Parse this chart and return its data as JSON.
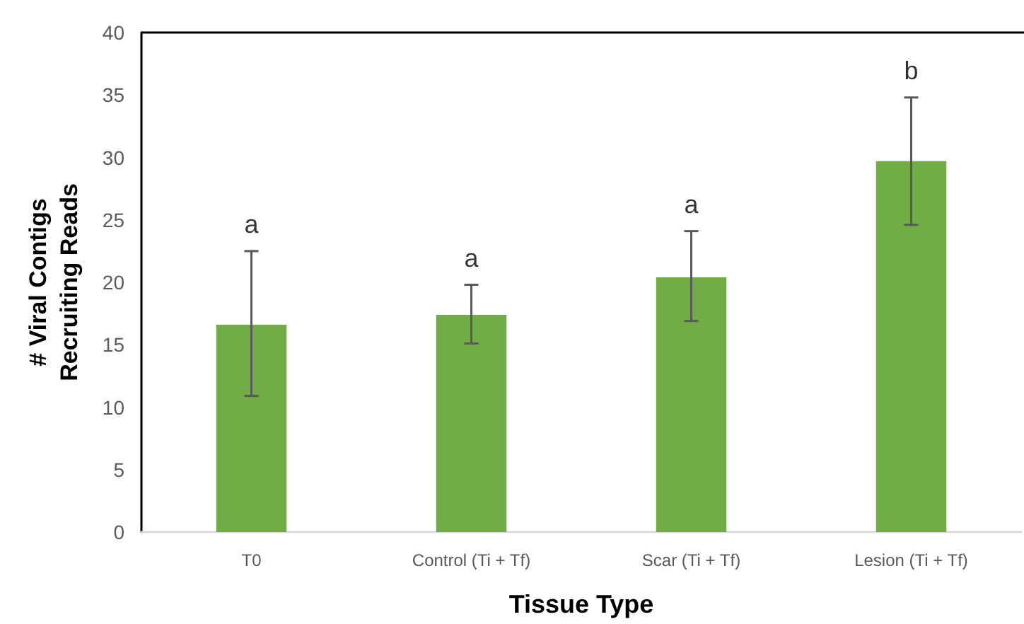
{
  "chart_data": {
    "type": "bar",
    "xlabel": "Tissue Type",
    "ylabel": "# Viral Contigs\nRecruiting Reads",
    "categories": [
      "T0",
      "Control (Ti + Tf)",
      "Scar (Ti + Tf)",
      "Lesion (Ti + Tf)"
    ],
    "values": [
      16.6,
      17.4,
      20.4,
      29.7
    ],
    "color": "#70ad47",
    "errors": [
      [
        10.9,
        22.5
      ],
      [
        15.1,
        19.8
      ],
      [
        16.9,
        24.1
      ],
      [
        24.6,
        34.8
      ]
    ],
    "ylim": [
      0,
      40
    ],
    "yticks": [
      0,
      5,
      10,
      15,
      20,
      25,
      30,
      35,
      40
    ],
    "grid": false,
    "annotations": [
      {
        "text": "a",
        "x": "T0",
        "y": 22.5
      },
      {
        "text": "a",
        "x": "Control (Ti + Tf)",
        "y": 19.8
      },
      {
        "text": "a",
        "x": "Scar (Ti + Tf)",
        "y": 24.1
      },
      {
        "text": "b",
        "x": "Lesion (Ti + Tf)",
        "y": 34.8
      }
    ]
  }
}
